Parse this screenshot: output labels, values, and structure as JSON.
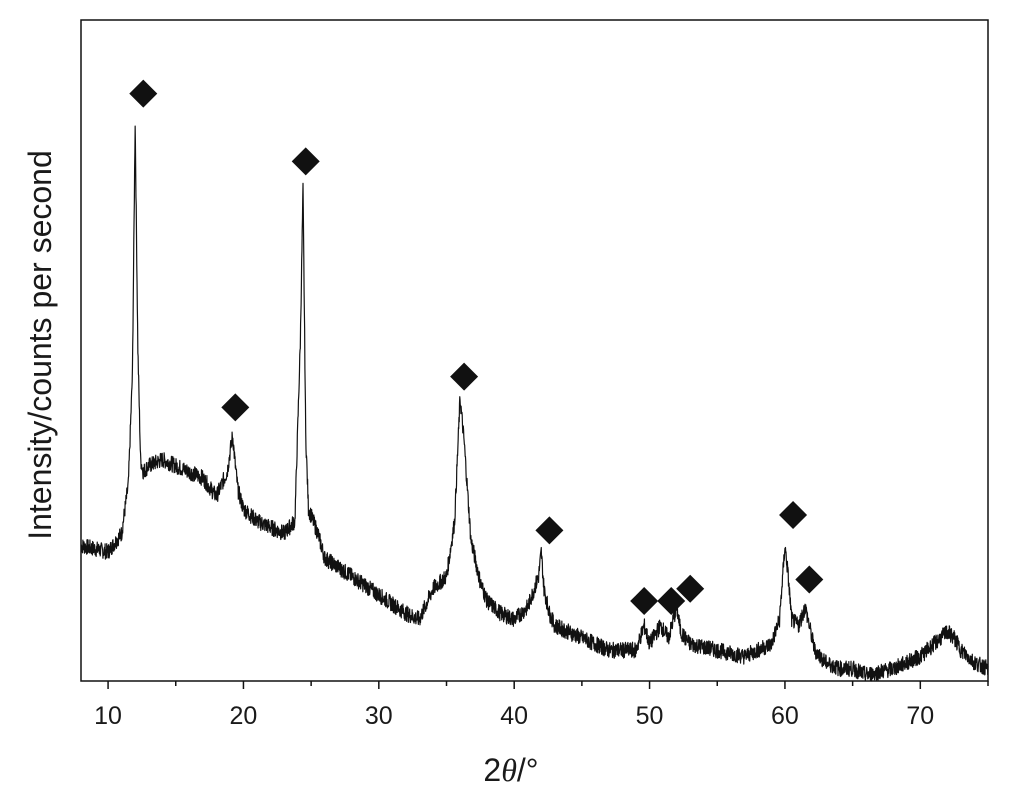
{
  "chart_data": {
    "type": "line",
    "title": "",
    "xlabel_prefix": "2",
    "xlabel_symbol": "θ",
    "xlabel_suffix": "/°",
    "ylabel": "Intensity/counts per second",
    "xlim": [
      8,
      75
    ],
    "ylim": [
      0,
      100
    ],
    "y_ticks_shown": false,
    "grid": false,
    "legend": "none",
    "x_ticks": [
      10,
      20,
      30,
      40,
      50,
      60,
      70
    ],
    "x_tick_labels": [
      "10",
      "20",
      "30",
      "40",
      "50",
      "60",
      "70"
    ],
    "line_color": "#111111",
    "marker_color": "#111111",
    "marker_shape": "diamond",
    "series": [
      {
        "x": [
          8,
          10,
          11,
          11.5,
          11.8,
          12.0,
          12.2,
          12.4,
          12.6,
          13,
          14,
          15,
          16,
          17,
          18,
          18.8,
          19.2,
          19.4,
          19.6,
          20,
          21,
          22,
          23,
          23.8,
          24.2,
          24.4,
          24.6,
          24.8,
          25.5,
          26,
          28,
          30,
          32,
          33,
          34,
          35,
          35.6,
          36.0,
          36.3,
          36.8,
          37.5,
          38,
          39,
          40,
          41,
          41.8,
          42.0,
          42.2,
          42.6,
          43,
          45,
          47,
          49,
          49.6,
          50,
          50.8,
          51.4,
          52.0,
          52.3,
          52.6,
          53,
          55,
          57,
          58,
          59,
          59.6,
          60.0,
          60.2,
          60.5,
          61,
          61.5,
          61.8,
          62.2,
          63,
          64,
          65,
          66,
          68,
          69,
          70,
          71,
          72,
          72.5,
          73,
          74,
          75
        ],
        "y": [
          22,
          21,
          24,
          32,
          50,
          91,
          54,
          36,
          34,
          35,
          36,
          35,
          34,
          33,
          30,
          34,
          40,
          35,
          31,
          28,
          26,
          25,
          24,
          26,
          55,
          80,
          40,
          28,
          24,
          20,
          17,
          14,
          11,
          10,
          15,
          17,
          26,
          46,
          39,
          23,
          16,
          13,
          11,
          10,
          12,
          17,
          21,
          15,
          11,
          9,
          7,
          5,
          5,
          9,
          6,
          9,
          7,
          12,
          8,
          7,
          6,
          5,
          4,
          5,
          6,
          10,
          22,
          18,
          10,
          9,
          12,
          9,
          5,
          3,
          2,
          2,
          1,
          2,
          3,
          4,
          6,
          8,
          7,
          5,
          3,
          2
        ]
      }
    ],
    "peak_markers": [
      {
        "x": 12.6,
        "y": 95.5
      },
      {
        "x": 19.4,
        "y": 44.5
      },
      {
        "x": 24.6,
        "y": 84.5
      },
      {
        "x": 36.3,
        "y": 49.5
      },
      {
        "x": 42.6,
        "y": 24.5
      },
      {
        "x": 49.6,
        "y": 13.0
      },
      {
        "x": 51.6,
        "y": 13.0
      },
      {
        "x": 53.0,
        "y": 15.0
      },
      {
        "x": 60.6,
        "y": 27.0
      },
      {
        "x": 61.8,
        "y": 16.5
      }
    ]
  }
}
